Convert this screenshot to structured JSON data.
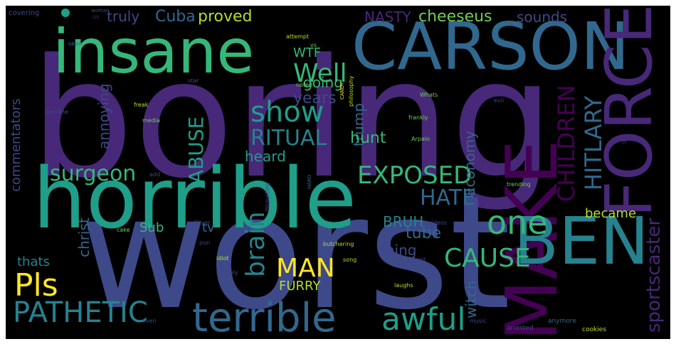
{
  "palette": {
    "background": "#000000",
    "purple_dark": "#440154",
    "purple": "#482878",
    "indigo": "#3e4989",
    "blue": "#31688e",
    "teal_blue": "#26828e",
    "teal": "#1f9e89",
    "green": "#35b779",
    "light_green": "#6ece58",
    "yellow_green": "#b5de2b",
    "yellow": "#fde725"
  },
  "words": {
    "boring": "boring",
    "worst": "worst",
    "horrible": "horrible",
    "insane": "insane",
    "carson": "CARSON",
    "force": "FORCE",
    "make": "MAKE",
    "ben": "BEN",
    "terrible": "terrible",
    "pathetic": "PATHETIC",
    "awful": "awful",
    "show": "show",
    "ritual": "RITUAL",
    "exposed": "EXPOSED",
    "hate": "HATE",
    "one": "one",
    "children": "CHILDREN",
    "hitlary": "HITLARY",
    "well": "Well",
    "pls": "Pls",
    "man": "MAN",
    "cause": "CAUSE",
    "surgeon": "surgeon",
    "abuse": "ABUSE",
    "brain": "brain",
    "sportscaster": "sportscaster",
    "cuba": "Cuba",
    "proved": "proved",
    "truly": "truly",
    "nasty": "NASTY",
    "cheeseus": "cheeseus",
    "sounds": "sounds",
    "wtf": "WTF",
    "going": "going",
    "years": "years",
    "trump": "trump",
    "hunt": "hunt",
    "economy": "Economy",
    "heard": "heard",
    "annoying": "annoying",
    "commentators": "commentators",
    "christ": "christ",
    "sub": "Sub",
    "tv": "tv",
    "bruh": "BRUH",
    "tube": "tube",
    "became": "became",
    "thing": "thing",
    "thats": "thats",
    "furry": "FURRY",
    "witch": "witch",
    "covering": "covering",
    "woman": "woman",
    "us": "us",
    "seen": "seen",
    "attempt": "attempt",
    "vs": "vs",
    "try": "try",
    "star": "star",
    "noted": "noted",
    "candy": "CANDY",
    "philosophy": "philosophy",
    "whats": "Whats",
    "evil": "evil",
    "become": "become",
    "freak": "freak",
    "frankly": "frankly",
    "media": "media",
    "tf": "tf",
    "arpaio": "Arpaio",
    "add": "add",
    "trending": "trending",
    "hard": "HARD",
    "disgusting": "disgusting",
    "oliver": "Oliver",
    "videos": "videos",
    "cake": "cake",
    "pun": "pun",
    "butchering": "butchering",
    "idiot": "idiot",
    "song": "song",
    "tired": "Tired",
    "horribly": "horribly",
    "laughs": "laughs",
    "even": "even",
    "music": "music",
    "arrested": "arrested",
    "anymore": "anymore",
    "cookies": "cookies"
  }
}
